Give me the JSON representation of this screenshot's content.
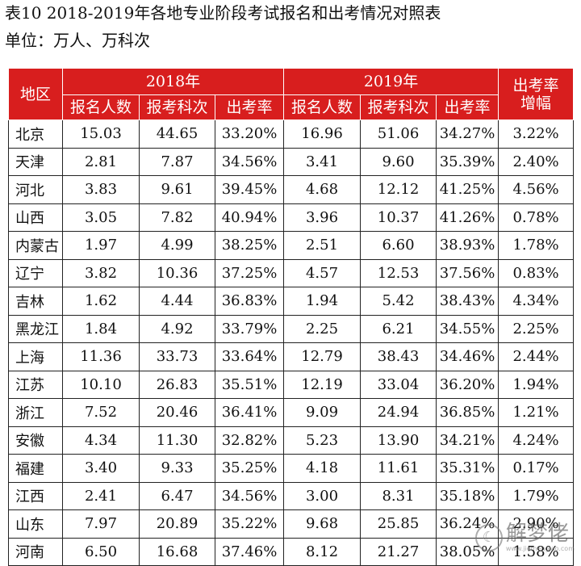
{
  "caption": {
    "title": "表10  2018-2019年各地专业阶段考试报名和出考情况对照表",
    "unit": "单位：万人、万科次"
  },
  "colors": {
    "header_bg": "#d81e1e",
    "header_text": "#ffffff"
  },
  "table": {
    "headers": {
      "region": "地区",
      "year_2018": "2018年",
      "year_2019": "2019年",
      "growth": "出考率\n增幅",
      "sub_2018": [
        "报名人数",
        "报考科次",
        "出考率"
      ],
      "sub_2019": [
        "报名人数",
        "报考科次",
        "出考率"
      ]
    },
    "rows": [
      [
        "北京",
        "15.03",
        "44.65",
        "33.20%",
        "16.96",
        "51.06",
        "34.27%",
        "3.22%"
      ],
      [
        "天津",
        "2.81",
        "7.87",
        "34.56%",
        "3.41",
        "9.60",
        "35.39%",
        "2.40%"
      ],
      [
        "河北",
        "3.83",
        "9.61",
        "39.45%",
        "4.68",
        "12.12",
        "41.25%",
        "4.56%"
      ],
      [
        "山西",
        "3.05",
        "7.82",
        "40.94%",
        "3.96",
        "10.37",
        "41.26%",
        "0.78%"
      ],
      [
        "内蒙古",
        "1.97",
        "4.99",
        "38.25%",
        "2.51",
        "6.60",
        "38.93%",
        "1.78%"
      ],
      [
        "辽宁",
        "3.82",
        "10.36",
        "37.25%",
        "4.57",
        "12.53",
        "37.56%",
        "0.83%"
      ],
      [
        "吉林",
        "1.62",
        "4.44",
        "36.83%",
        "1.94",
        "5.42",
        "38.43%",
        "4.34%"
      ],
      [
        "黑龙江",
        "1.84",
        "4.92",
        "33.79%",
        "2.25",
        "6.21",
        "34.55%",
        "2.25%"
      ],
      [
        "上海",
        "11.36",
        "33.73",
        "33.64%",
        "12.79",
        "38.43",
        "34.46%",
        "2.44%"
      ],
      [
        "江苏",
        "10.10",
        "26.83",
        "35.51%",
        "12.19",
        "33.04",
        "36.20%",
        "1.94%"
      ],
      [
        "浙江",
        "7.52",
        "20.46",
        "36.41%",
        "9.09",
        "24.94",
        "36.85%",
        "1.21%"
      ],
      [
        "安徽",
        "4.34",
        "11.30",
        "32.82%",
        "5.23",
        "13.90",
        "34.21%",
        "4.24%"
      ],
      [
        "福建",
        "3.40",
        "9.33",
        "35.25%",
        "4.18",
        "11.61",
        "35.31%",
        "0.17%"
      ],
      [
        "江西",
        "2.41",
        "6.47",
        "34.56%",
        "3.00",
        "8.31",
        "35.18%",
        "1.79%"
      ],
      [
        "山东",
        "7.97",
        "20.89",
        "35.22%",
        "9.68",
        "25.85",
        "36.24%",
        "2.90%"
      ],
      [
        "河南",
        "6.50",
        "16.68",
        "37.46%",
        "8.12",
        "21.27",
        "38.05%",
        "1.58%"
      ]
    ]
  },
  "watermark": {
    "text": "解梦佬",
    "url": "www.jiemenglao.com",
    "logo_icon": "dream-logo"
  }
}
